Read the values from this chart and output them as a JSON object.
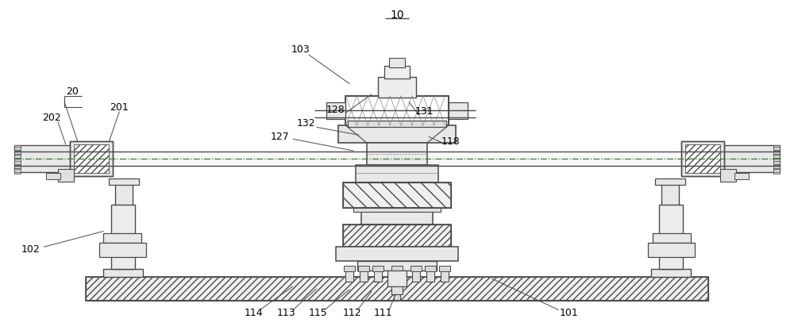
{
  "background_color": "#ffffff",
  "line_color": "#4a4a4a",
  "light_line_color": "#888888",
  "fig_width": 10.0,
  "fig_height": 4.16,
  "dpi": 100
}
